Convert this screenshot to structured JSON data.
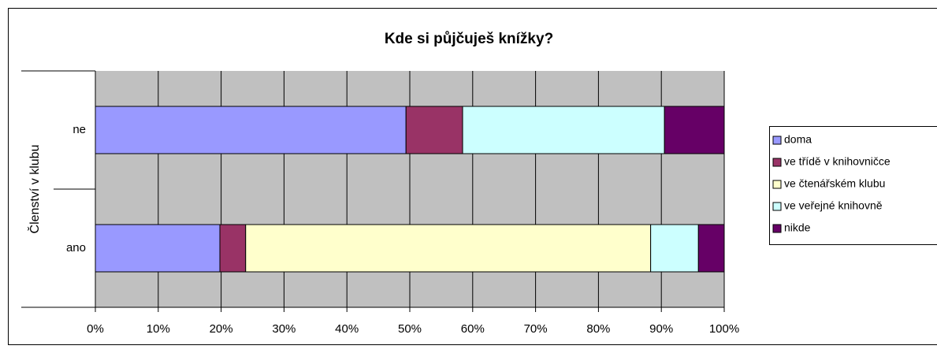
{
  "chart_data": {
    "type": "stacked_barh",
    "title": "Kde si půjčuješ knížky?",
    "y_label": "Členství v klubu",
    "categories": [
      "ne",
      "ano"
    ],
    "series": [
      {
        "name": "doma",
        "color": "#9999ff",
        "values": [
          49.4,
          19.8
        ]
      },
      {
        "name": "ve třídě v knihovničce",
        "color": "#993366",
        "values": [
          9.0,
          4.1
        ]
      },
      {
        "name": "ve čtenářském klubu",
        "color": "#ffffcc",
        "values": [
          0,
          64.4
        ]
      },
      {
        "name": "ve veřejné knihovně",
        "color": "#ccffff",
        "values": [
          32.1,
          7.6
        ]
      },
      {
        "name": "nikde",
        "color": "#660066",
        "values": [
          9.5,
          4.1
        ]
      }
    ],
    "xlim": [
      0,
      100
    ],
    "xticks": [
      {
        "value": 0,
        "label": "0%"
      },
      {
        "value": 10,
        "label": "10%"
      },
      {
        "value": 20,
        "label": "20%"
      },
      {
        "value": 30,
        "label": "30%"
      },
      {
        "value": 40,
        "label": "40%"
      },
      {
        "value": 50,
        "label": "50%"
      },
      {
        "value": 60,
        "label": "60%"
      },
      {
        "value": 70,
        "label": "70%"
      },
      {
        "value": 80,
        "label": "80%"
      },
      {
        "value": 90,
        "label": "90%"
      },
      {
        "value": 100,
        "label": "100%"
      }
    ],
    "grid": true,
    "plot_background": "#c0c0c0",
    "legend": "right"
  }
}
